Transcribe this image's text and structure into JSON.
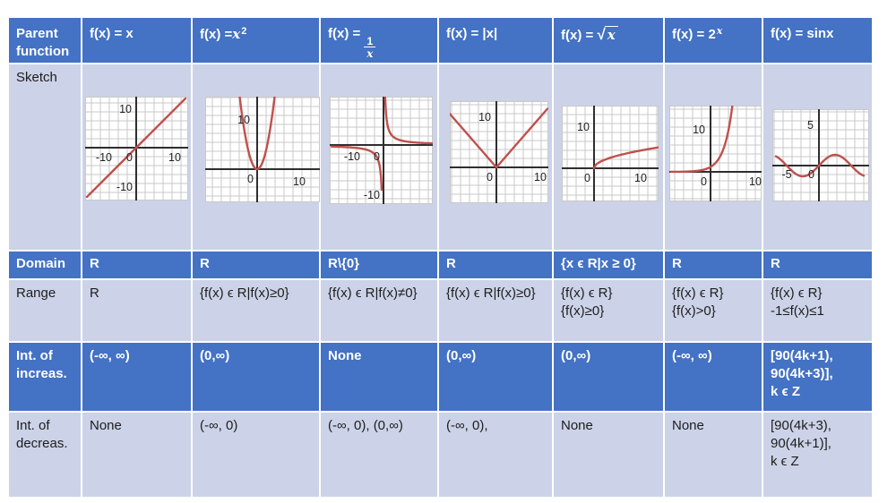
{
  "theme": {
    "header_blue": "#4472c4",
    "band_lavender": "#ccd3e8",
    "header_text": "#ffffff",
    "body_text": "#1d1d1d",
    "curve_red": "#c0504d",
    "grid_gray": "#c9c9c9",
    "axis_black": "#2e2e2e"
  },
  "table": {
    "corner_label": "Parent function",
    "columns": [
      {
        "id": "x",
        "title_parts": {
          "type": "plain",
          "text": "f(x) = x"
        }
      },
      {
        "id": "x-squared",
        "title_parts": {
          "type": "power",
          "prefix": "f(x) =",
          "base": "x",
          "sup": "2"
        }
      },
      {
        "id": "one-over-x",
        "title_parts": {
          "type": "fraction",
          "prefix": "f(x) =",
          "num": "1",
          "den": "x"
        }
      },
      {
        "id": "abs-x",
        "title_parts": {
          "type": "plain",
          "text": "f(x) = |x|"
        }
      },
      {
        "id": "sqrt-x",
        "title_parts": {
          "type": "sqrt",
          "prefix": "f(x) = ",
          "rad": "√",
          "radicand": "x"
        }
      },
      {
        "id": "two-to-x",
        "title_parts": {
          "type": "power",
          "prefix": "f(x) = ",
          "base": "2",
          "sup": "x"
        }
      },
      {
        "id": "sin-x",
        "title_parts": {
          "type": "plain",
          "text": "f(x) = sinx"
        }
      }
    ],
    "rows": [
      {
        "label": "Sketch",
        "style": "light",
        "type": "sketch"
      },
      {
        "label": "Domain",
        "style": "blue",
        "values": [
          "R",
          "R",
          "R\\{0}",
          "R",
          "{x ϵ R|x ≥ 0}",
          "R",
          "R"
        ]
      },
      {
        "label": "Range",
        "style": "light",
        "values": [
          "R",
          "{f(x) ϵ R|f(x)≥0}",
          "{f(x) ϵ R|f(x)≠0}",
          "{f(x) ϵ R|f(x)≥0}",
          "{f(x) ϵ R}\n{f(x)≥0}",
          "{f(x) ϵ R}\n{f(x)>0}",
          "{f(x) ϵ R}\n-1≤f(x)≤1"
        ]
      },
      {
        "label": "Int. of\nincreas.",
        "style": "blue",
        "values": [
          "(-∞, ∞)",
          "(0,∞)",
          "None",
          "(0,∞)",
          "(0,∞)",
          "(-∞, ∞)",
          "[90(4k+1),\n90(4k+3)],\nk ϵ Z"
        ]
      },
      {
        "label": "Int. of\ndecreas.",
        "style": "light",
        "values": [
          "None",
          "(-∞, 0)",
          "(-∞, 0), (0,∞)",
          "(-∞, 0),",
          "None",
          "None",
          "[90(4k+3),\n90(4k+1)],\nk ϵ Z"
        ]
      }
    ],
    "sketches": [
      {
        "fn": "linear",
        "ticks": [
          "10",
          "-10",
          "0",
          "10",
          "-10"
        ]
      },
      {
        "fn": "parabola",
        "ticks": [
          "10",
          "0",
          "10"
        ]
      },
      {
        "fn": "reciprocal",
        "ticks": [
          "-10",
          "0",
          "-10"
        ]
      },
      {
        "fn": "absolute",
        "ticks": [
          "10",
          "0",
          "10"
        ]
      },
      {
        "fn": "sqrt",
        "ticks": [
          "10",
          "0",
          "10"
        ]
      },
      {
        "fn": "exponential",
        "ticks": [
          "10",
          "0",
          "10"
        ]
      },
      {
        "fn": "sine",
        "ticks": [
          "5",
          "-5",
          "0"
        ]
      }
    ]
  }
}
